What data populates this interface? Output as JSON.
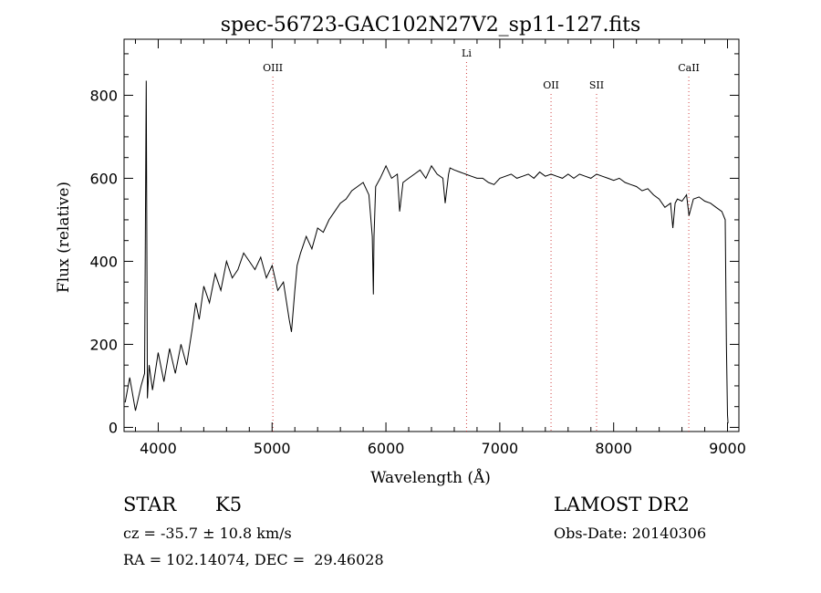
{
  "chart_data": {
    "type": "line",
    "title": "spec-56723-GAC102N27V2_sp11-127.fits",
    "xlabel": "Wavelength (Å)",
    "ylabel": "Flux (relative)",
    "xlim": [
      3700,
      9100
    ],
    "ylim": [
      -10,
      935
    ],
    "x_ticks": [
      4000,
      5000,
      6000,
      7000,
      8000,
      9000
    ],
    "x_tick_labels": [
      "4000",
      "5000",
      "6000",
      "7000",
      "8000",
      "9000"
    ],
    "y_ticks": [
      0,
      200,
      400,
      600,
      800
    ],
    "y_tick_labels": [
      "0",
      "200",
      "400",
      "600",
      "800"
    ],
    "line_color": "#000000",
    "marker_color": "#d04040",
    "lines": [
      {
        "label": "OIII",
        "wavelength": 5007
      },
      {
        "label": "Li",
        "wavelength": 6708
      },
      {
        "label": "OII",
        "wavelength": 7450
      },
      {
        "label": "SII",
        "wavelength": 7850
      },
      {
        "label": "CaII",
        "wavelength": 8660
      }
    ],
    "series": [
      {
        "x": [
          3710,
          3750,
          3800,
          3850,
          3880,
          3895,
          3905,
          3920,
          3950,
          4000,
          4050,
          4100,
          4150,
          4200,
          4250,
          4300,
          4330,
          4360,
          4400,
          4450,
          4500,
          4550,
          4600,
          4650,
          4700,
          4750,
          4800,
          4850,
          4900,
          4950,
          5000,
          5050,
          5100,
          5150,
          5170,
          5200,
          5220,
          5250,
          5300,
          5350,
          5400,
          5450,
          5500,
          5550,
          5600,
          5650,
          5700,
          5750,
          5800,
          5850,
          5880,
          5890,
          5895,
          5910,
          5950,
          6000,
          6050,
          6100,
          6120,
          6150,
          6200,
          6250,
          6300,
          6350,
          6400,
          6450,
          6500,
          6520,
          6550,
          6563,
          6600,
          6650,
          6700,
          6750,
          6800,
          6850,
          6900,
          6950,
          7000,
          7050,
          7100,
          7150,
          7200,
          7250,
          7300,
          7350,
          7400,
          7450,
          7500,
          7550,
          7600,
          7650,
          7700,
          7750,
          7800,
          7850,
          7900,
          7950,
          8000,
          8050,
          8100,
          8150,
          8200,
          8250,
          8300,
          8350,
          8400,
          8450,
          8500,
          8520,
          8540,
          8560,
          8600,
          8640,
          8662,
          8700,
          8750,
          8800,
          8850,
          8900,
          8950,
          8980,
          8990,
          9000,
          9005
        ],
        "y": [
          60,
          120,
          40,
          100,
          130,
          835,
          70,
          150,
          90,
          180,
          110,
          190,
          130,
          200,
          150,
          240,
          300,
          260,
          340,
          300,
          370,
          330,
          400,
          360,
          380,
          420,
          400,
          380,
          410,
          360,
          390,
          330,
          350,
          260,
          230,
          330,
          390,
          420,
          460,
          430,
          480,
          470,
          500,
          520,
          540,
          550,
          570,
          580,
          590,
          560,
          460,
          320,
          460,
          580,
          600,
          630,
          600,
          610,
          520,
          590,
          600,
          610,
          620,
          600,
          630,
          610,
          600,
          540,
          610,
          625,
          620,
          615,
          610,
          605,
          600,
          600,
          590,
          585,
          600,
          605,
          610,
          600,
          605,
          610,
          600,
          615,
          605,
          610,
          605,
          600,
          610,
          600,
          610,
          605,
          600,
          610,
          605,
          600,
          595,
          600,
          590,
          585,
          580,
          570,
          575,
          560,
          550,
          530,
          540,
          480,
          540,
          550,
          545,
          560,
          510,
          550,
          555,
          545,
          540,
          530,
          520,
          500,
          200,
          30,
          10
        ]
      }
    ]
  },
  "info": {
    "object_type": "STAR",
    "subclass": "K5",
    "survey": "LAMOST DR2",
    "cz": "cz = -35.7 ± 10.8 km/s",
    "obs_date": "Obs-Date: 20140306",
    "coords": "RA = 102.14074, DEC =  29.46028"
  }
}
